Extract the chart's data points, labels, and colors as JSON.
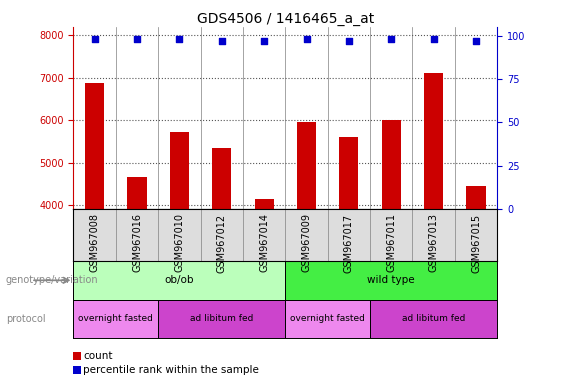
{
  "title": "GDS4506 / 1416465_a_at",
  "samples": [
    "GSM967008",
    "GSM967016",
    "GSM967010",
    "GSM967012",
    "GSM967014",
    "GSM967009",
    "GSM967017",
    "GSM967011",
    "GSM967013",
    "GSM967015"
  ],
  "counts": [
    6880,
    4660,
    5720,
    5340,
    4140,
    5960,
    5600,
    6010,
    7120,
    4460
  ],
  "percentile_ranks": [
    98,
    98,
    98,
    97,
    97,
    98,
    97,
    98,
    98,
    97
  ],
  "ylim_left": [
    3900,
    8200
  ],
  "ylim_right": [
    0,
    105
  ],
  "yticks_left": [
    4000,
    5000,
    6000,
    7000,
    8000
  ],
  "yticks_right": [
    0,
    25,
    50,
    75,
    100
  ],
  "bar_color": "#cc0000",
  "scatter_color": "#0000cc",
  "bar_width": 0.45,
  "genotype_groups": [
    {
      "label": "ob/ob",
      "start": 0,
      "end": 5,
      "color": "#bbffbb"
    },
    {
      "label": "wild type",
      "start": 5,
      "end": 10,
      "color": "#44ee44"
    }
  ],
  "protocol_groups": [
    {
      "label": "overnight fasted",
      "start": 0,
      "end": 2,
      "color": "#ee88ee"
    },
    {
      "label": "ad libitum fed",
      "start": 2,
      "end": 5,
      "color": "#cc44cc"
    },
    {
      "label": "overnight fasted",
      "start": 5,
      "end": 7,
      "color": "#ee88ee"
    },
    {
      "label": "ad libitum fed",
      "start": 7,
      "end": 10,
      "color": "#cc44cc"
    }
  ],
  "genotype_label": "genotype/variation",
  "protocol_label": "protocol",
  "legend_items": [
    {
      "label": "count",
      "color": "#cc0000"
    },
    {
      "label": "percentile rank within the sample",
      "color": "#0000cc"
    }
  ],
  "dotted_line_color": "#555555",
  "bg_color": "#ffffff",
  "axis_color_left": "#cc0000",
  "axis_color_right": "#0000cc",
  "tick_label_bg": "#dddddd",
  "title_fontsize": 10,
  "tick_fontsize": 7,
  "sample_fontsize": 7,
  "annot_fontsize": 7.5,
  "legend_fontsize": 7.5
}
